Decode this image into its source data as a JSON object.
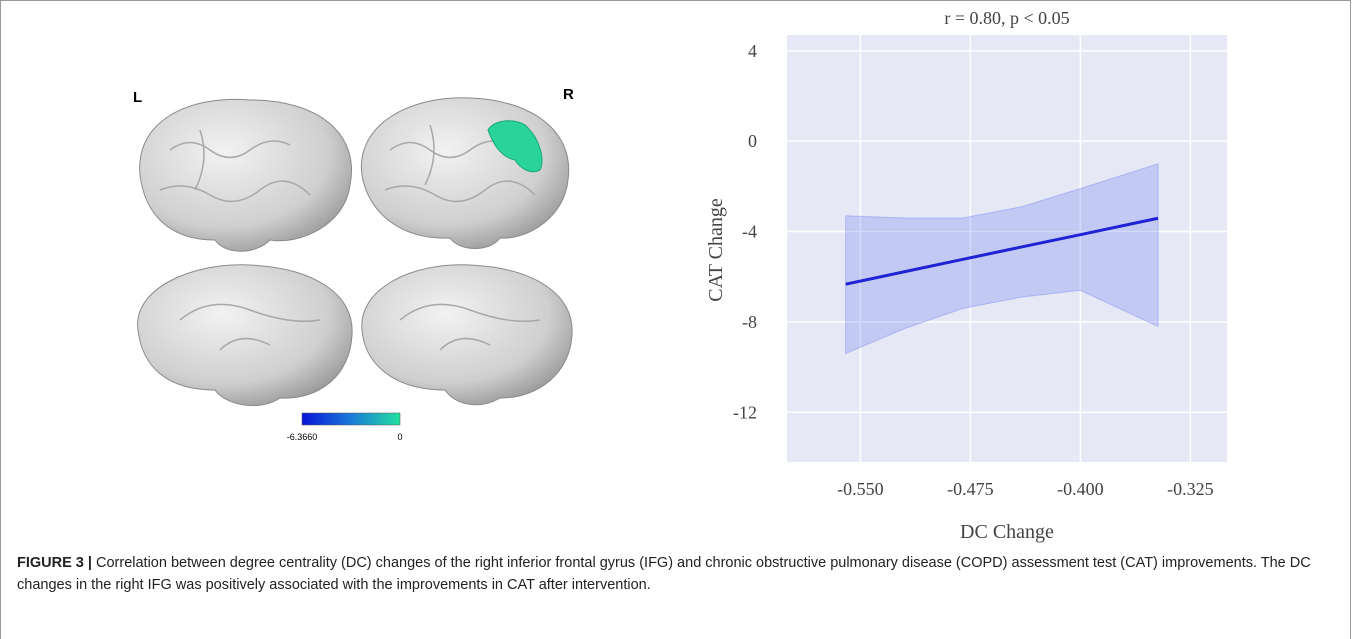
{
  "brain_panel": {
    "left_label": "L",
    "right_label": "R",
    "colorbar_min": "-6.3660",
    "colorbar_max": "0"
  },
  "chart_data": {
    "type": "line",
    "title": "r = 0.80, p < 0.05",
    "x_label": "DC Change",
    "y_label": "CAT Change",
    "x": [
      -0.56,
      -0.52,
      -0.48,
      -0.44,
      -0.4,
      -0.347
    ],
    "series": [
      {
        "color": "#1f23d6",
        "band_color": "#6f80f0",
        "values": [
          -6.33,
          -5.78,
          -5.23,
          -4.68,
          -4.14,
          -3.41
        ],
        "upper": [
          -3.3,
          -3.4,
          -3.4,
          -2.9,
          -2.1,
          -1.0
        ],
        "lower": [
          -9.4,
          -8.3,
          -7.4,
          -6.9,
          -6.6,
          -8.2
        ]
      }
    ],
    "xlim": [
      -0.6,
      -0.3
    ],
    "xticks": [
      {
        "value": -0.55,
        "label": "-0.550"
      },
      {
        "value": -0.475,
        "label": "-0.475"
      },
      {
        "value": -0.4,
        "label": "-0.400"
      },
      {
        "value": -0.325,
        "label": "-0.325"
      }
    ],
    "ylim": [
      -14.2,
      4.7
    ],
    "yticks": [
      4,
      0,
      -4,
      -8,
      -12
    ],
    "grid": true,
    "background": "#e6e9f5"
  },
  "caption": {
    "label": "FIGURE 3 |",
    "text": "Correlation between degree centrality (DC) changes of the right inferior frontal gyrus (IFG) and chronic obstructive pulmonary disease (COPD) assessment test (CAT) improvements. The DC changes in the right IFG was positively associated with the improvements in CAT after intervention."
  }
}
